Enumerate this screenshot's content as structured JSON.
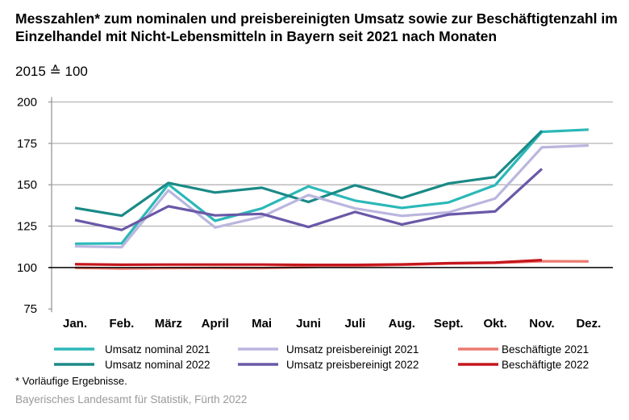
{
  "chart_data": {
    "type": "line",
    "title": "Messzahlen* zum nominalen und preisbereinigten Umsatz sowie zur Beschäftigtenzahl im Einzelhandel mit Nicht-Lebensmitteln in Bayern seit 2021 nach Monaten",
    "subtitle": "2015 ≙ 100",
    "xlabel": "",
    "ylabel": "",
    "categories": [
      "Jan.",
      "Feb.",
      "März",
      "April",
      "Mai",
      "Juni",
      "Juli",
      "Aug.",
      "Sept.",
      "Okt.",
      "Nov.",
      "Dez."
    ],
    "ylim": [
      75,
      200
    ],
    "yticks": [
      75,
      100,
      125,
      150,
      175,
      200
    ],
    "grid": true,
    "legend_placement": "bottom",
    "series": [
      {
        "name": "Umsatz nominal 2021",
        "color": "#2bb8b8",
        "values": [
          114.4,
          114.6,
          150.2,
          128.2,
          135.7,
          149.0,
          140.4,
          136.0,
          139.3,
          149.8,
          182.0,
          183.3
        ]
      },
      {
        "name": "Umsatz nominal 2022",
        "color": "#1a8a86",
        "values": [
          136.0,
          131.3,
          151.1,
          145.3,
          148.2,
          139.6,
          149.7,
          142.0,
          150.8,
          154.7,
          182.6,
          null
        ]
      },
      {
        "name": "Umsatz preisbereinigt 2021",
        "color": "#bab6de",
        "values": [
          112.8,
          112.3,
          146.6,
          124.2,
          130.7,
          143.8,
          135.7,
          131.2,
          133.3,
          141.7,
          172.6,
          173.7
        ]
      },
      {
        "name": "Umsatz preisbereinigt 2022",
        "color": "#6a58a8",
        "values": [
          128.7,
          122.7,
          137.0,
          131.5,
          132.4,
          124.5,
          133.6,
          126.0,
          132.0,
          133.9,
          159.6,
          null
        ]
      },
      {
        "name": "Beschäftigte 2021",
        "color": "#ec7a70",
        "values": [
          99.8,
          99.4,
          99.7,
          99.8,
          99.7,
          100.3,
          101.0,
          101.6,
          102.4,
          102.8,
          103.8,
          103.7
        ]
      },
      {
        "name": "Beschäftigte 2022",
        "color": "#c4161c",
        "values": [
          102.0,
          101.7,
          101.8,
          101.8,
          101.8,
          101.6,
          101.6,
          101.9,
          102.6,
          103.0,
          104.5,
          null
        ]
      }
    ]
  },
  "footnote": "* Vorläufige Ergebnisse.",
  "source": "Bayerisches Landesamt für Statistik, Fürth 2022"
}
